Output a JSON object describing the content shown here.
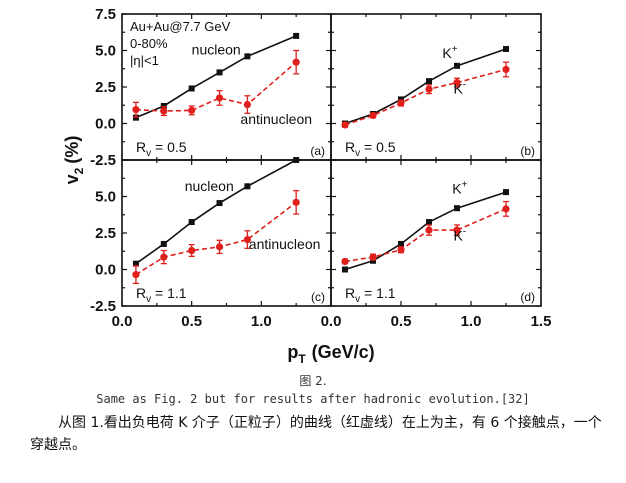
{
  "chart_data": [
    {
      "type": "line",
      "panel": "a",
      "label": "(a)",
      "annotations": [
        "Au+Au@7.7 GeV",
        "0-80%",
        "|η|<1"
      ],
      "rv_label": "R_v = 0.5",
      "x_ticks": [],
      "y_ticks": [
        "7.5",
        "5.0",
        "2.5",
        "0.0",
        "-2.5"
      ],
      "xlim": [
        0,
        1.5
      ],
      "ylim": [
        -2.5,
        7.5
      ],
      "series": [
        {
          "name": "nucleon",
          "style": "solid",
          "color": "#111111",
          "marker": "square",
          "x": [
            0.1,
            0.3,
            0.5,
            0.7,
            0.9,
            1.25
          ],
          "y": [
            0.4,
            1.2,
            2.4,
            3.5,
            4.6,
            6.0
          ]
        },
        {
          "name": "antinucleon",
          "style": "dashed",
          "color": "#e0201c",
          "marker": "circle",
          "x": [
            0.1,
            0.3,
            0.5,
            0.7,
            0.9,
            1.25
          ],
          "y": [
            0.95,
            0.85,
            0.9,
            1.75,
            1.3,
            4.2
          ],
          "err": [
            0.5,
            0.3,
            0.3,
            0.5,
            0.6,
            0.8
          ]
        }
      ]
    },
    {
      "type": "line",
      "panel": "b",
      "label": "(b)",
      "annotations": [],
      "rv_label": "R_v = 0.5",
      "x_ticks": [],
      "y_ticks": [],
      "xlim": [
        0,
        1.5
      ],
      "ylim": [
        -2.5,
        7.5
      ],
      "series": [
        {
          "name": "K+",
          "style": "solid",
          "color": "#111111",
          "marker": "square",
          "x": [
            0.1,
            0.3,
            0.5,
            0.7,
            0.9,
            1.25
          ],
          "y": [
            0.0,
            0.65,
            1.65,
            2.9,
            3.95,
            5.1
          ]
        },
        {
          "name": "K-",
          "style": "dashed",
          "color": "#e0201c",
          "marker": "circle",
          "x": [
            0.1,
            0.3,
            0.5,
            0.7,
            0.9,
            1.25
          ],
          "y": [
            -0.1,
            0.55,
            1.4,
            2.35,
            2.8,
            3.7
          ],
          "err": [
            0.15,
            0.15,
            0.2,
            0.3,
            0.3,
            0.5
          ]
        }
      ]
    },
    {
      "type": "line",
      "panel": "c",
      "label": "(c)",
      "annotations": [],
      "rv_label": "R_v = 1.1",
      "x_ticks": [
        "0.0",
        "0.5",
        "1.0"
      ],
      "y_ticks": [
        "5.0",
        "2.5",
        "0.0",
        "-2.5"
      ],
      "xlim": [
        0,
        1.5
      ],
      "ylim": [
        -2.5,
        7.5
      ],
      "series": [
        {
          "name": "nucleon",
          "style": "solid",
          "color": "#111111",
          "marker": "square",
          "x": [
            0.1,
            0.3,
            0.5,
            0.7,
            0.9,
            1.25
          ],
          "y": [
            0.4,
            1.75,
            3.25,
            4.55,
            5.7,
            7.5
          ]
        },
        {
          "name": "antinucleon",
          "style": "dashed",
          "color": "#e0201c",
          "marker": "circle",
          "x": [
            0.1,
            0.3,
            0.5,
            0.7,
            0.9,
            1.25
          ],
          "y": [
            -0.35,
            0.85,
            1.3,
            1.55,
            2.05,
            4.6
          ],
          "err": [
            0.6,
            0.45,
            0.4,
            0.45,
            0.6,
            0.8
          ]
        }
      ]
    },
    {
      "type": "line",
      "panel": "d",
      "label": "(d)",
      "annotations": [],
      "rv_label": "R_v = 1.1",
      "x_ticks": [
        "0.0",
        "0.5",
        "1.0",
        "1.5"
      ],
      "y_ticks": [],
      "xlim": [
        0,
        1.5
      ],
      "ylim": [
        -2.5,
        7.5
      ],
      "series": [
        {
          "name": "K+",
          "style": "solid",
          "color": "#111111",
          "marker": "square",
          "x": [
            0.1,
            0.3,
            0.5,
            0.7,
            0.9,
            1.25
          ],
          "y": [
            0.0,
            0.6,
            1.75,
            3.25,
            4.2,
            5.3
          ]
        },
        {
          "name": "K-",
          "style": "dashed",
          "color": "#e0201c",
          "marker": "circle",
          "x": [
            0.1,
            0.3,
            0.5,
            0.7,
            0.9,
            1.25
          ],
          "y": [
            0.55,
            0.85,
            1.35,
            2.7,
            2.7,
            4.15
          ],
          "err": [
            0.15,
            0.2,
            0.2,
            0.35,
            0.35,
            0.5
          ]
        }
      ]
    }
  ],
  "axes": {
    "ylabel": "v",
    "ylabel_sub": "2",
    "ylabel_unit": "(%)",
    "xlabel": "p",
    "xlabel_sub": "T",
    "xlabel_unit": "(GeV/c)"
  },
  "figure_number": "图 2.",
  "caption": "Same as Fig. 2 but for results after hadronic evolution.[32]",
  "body_text": "从图 1.看出负电荷 K 介子（正粒子）的曲线（红虚线）在上为主，有 6 个接触点，一个穿越点。"
}
